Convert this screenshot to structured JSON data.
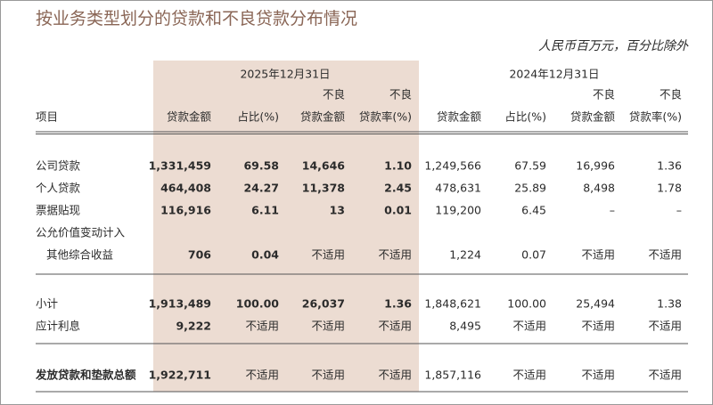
{
  "title": "按业务类型划分的贷款和不良贷款分布情况",
  "unit_note": "人民币百万元，百分比除外",
  "periods": [
    "2025年12月31日",
    "2024年12月31日"
  ],
  "table": {
    "columns": [
      [
        "项目"
      ],
      [
        "贷款金额"
      ],
      [
        "占比(%)"
      ],
      [
        "不良",
        "贷款金额"
      ],
      [
        "不良",
        "贷款率(%)"
      ],
      [
        "贷款金额"
      ],
      [
        "占比(%)"
      ],
      [
        "不良",
        "贷款金额"
      ],
      [
        "不良",
        "贷款率(%)"
      ]
    ],
    "rows": [
      {
        "label": [
          "公司贷款"
        ],
        "cells": [
          "1,331,459",
          "69.58",
          "14,646",
          "1.10",
          "1,249,566",
          "67.59",
          "16,996",
          "1.36"
        ]
      },
      {
        "label": [
          "个人贷款"
        ],
        "cells": [
          "464,408",
          "24.27",
          "11,378",
          "2.45",
          "478,631",
          "25.89",
          "8,498",
          "1.78"
        ]
      },
      {
        "label": [
          "票据贴现"
        ],
        "cells": [
          "116,916",
          "6.11",
          "13",
          "0.01",
          "119,200",
          "6.45",
          "–",
          "–"
        ]
      },
      {
        "label": [
          "公允价值变动计入",
          "其他综合收益"
        ],
        "cells": [
          "706",
          "0.04",
          "不适用",
          "不适用",
          "1,224",
          "0.07",
          "不适用",
          "不适用"
        ]
      },
      {
        "label": [
          "小计"
        ],
        "cells": [
          "1,913,489",
          "100.00",
          "26,037",
          "1.36",
          "1,848,621",
          "100.00",
          "25,494",
          "1.38"
        ]
      },
      {
        "label": [
          "应计利息"
        ],
        "cells": [
          "9,222",
          "不适用",
          "不适用",
          "不适用",
          "8,495",
          "不适用",
          "不适用",
          "不适用"
        ]
      },
      {
        "label": [
          "发放贷款和垫款总额"
        ],
        "cells": [
          "1,922,711",
          "不适用",
          "不适用",
          "不适用",
          "1,857,116",
          "不适用",
          "不适用",
          "不适用"
        ]
      }
    ]
  }
}
